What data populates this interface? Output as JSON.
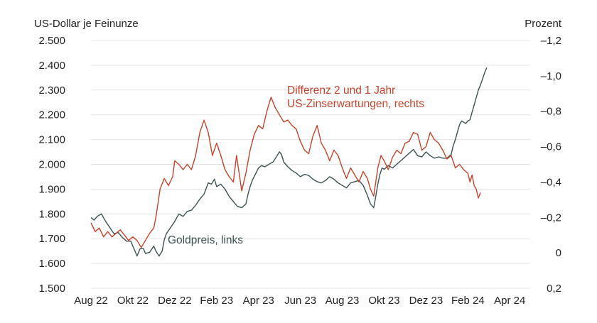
{
  "chart_data": {
    "type": "line",
    "title": "",
    "left_axis": {
      "label": "US-Dollar je Feinunze",
      "ticks": [
        "2.500",
        "2.400",
        "2.300",
        "2.200",
        "2.100",
        "2.000",
        "1.900",
        "1.800",
        "1.700",
        "1.600",
        "1.500"
      ],
      "range": [
        1500,
        2500
      ]
    },
    "right_axis": {
      "label": "Prozent",
      "ticks": [
        "–1,2",
        "–1,0",
        "–0,8",
        "–0,6",
        "–0,4",
        "–0,2",
        "0",
        "0,2"
      ],
      "range": [
        -1.2,
        0.2
      ],
      "inverted": true
    },
    "x_axis": {
      "ticks": [
        "Aug 22",
        "Okt 22",
        "Dez 22",
        "Feb 23",
        "Apr 23",
        "Jun 23",
        "Aug 23",
        "Okt 23",
        "Dez 23",
        "Feb 24",
        "Apr 24"
      ],
      "range": [
        0,
        20.5
      ]
    },
    "grid": true,
    "series": [
      {
        "name": "Goldpreis, links",
        "axis": "left",
        "color": "#3c5353",
        "points": [
          [
            0,
            1785
          ],
          [
            0.15,
            1775
          ],
          [
            0.3,
            1790
          ],
          [
            0.5,
            1800
          ],
          [
            0.7,
            1770
          ],
          [
            0.9,
            1745
          ],
          [
            1.1,
            1720
          ],
          [
            1.3,
            1725
          ],
          [
            1.5,
            1705
          ],
          [
            1.7,
            1690
          ],
          [
            1.9,
            1690
          ],
          [
            2.0,
            1670
          ],
          [
            2.1,
            1650
          ],
          [
            2.2,
            1630
          ],
          [
            2.35,
            1660
          ],
          [
            2.5,
            1660
          ],
          [
            2.6,
            1640
          ],
          [
            2.8,
            1645
          ],
          [
            3.0,
            1670
          ],
          [
            3.1,
            1650
          ],
          [
            3.25,
            1630
          ],
          [
            3.4,
            1650
          ],
          [
            3.5,
            1695
          ],
          [
            3.6,
            1720
          ],
          [
            3.8,
            1745
          ],
          [
            4.0,
            1770
          ],
          [
            4.2,
            1800
          ],
          [
            4.4,
            1790
          ],
          [
            4.6,
            1810
          ],
          [
            4.8,
            1815
          ],
          [
            5.0,
            1835
          ],
          [
            5.2,
            1860
          ],
          [
            5.4,
            1880
          ],
          [
            5.6,
            1925
          ],
          [
            5.75,
            1920
          ],
          [
            5.9,
            1940
          ],
          [
            6.0,
            1910
          ],
          [
            6.2,
            1920
          ],
          [
            6.4,
            1900
          ],
          [
            6.6,
            1870
          ],
          [
            6.8,
            1850
          ],
          [
            7.0,
            1830
          ],
          [
            7.2,
            1825
          ],
          [
            7.4,
            1840
          ],
          [
            7.5,
            1880
          ],
          [
            7.6,
            1910
          ],
          [
            7.7,
            1935
          ],
          [
            7.85,
            1960
          ],
          [
            8.0,
            1985
          ],
          [
            8.15,
            1995
          ],
          [
            8.3,
            1990
          ],
          [
            8.5,
            2000
          ],
          [
            8.7,
            2010
          ],
          [
            8.85,
            2030
          ],
          [
            9.0,
            2050
          ],
          [
            9.1,
            2040
          ],
          [
            9.2,
            2010
          ],
          [
            9.4,
            1990
          ],
          [
            9.6,
            1975
          ],
          [
            9.8,
            1965
          ],
          [
            10.0,
            1950
          ],
          [
            10.2,
            1960
          ],
          [
            10.4,
            1955
          ],
          [
            10.6,
            1940
          ],
          [
            10.8,
            1930
          ],
          [
            11.0,
            1925
          ],
          [
            11.2,
            1935
          ],
          [
            11.4,
            1950
          ],
          [
            11.6,
            1940
          ],
          [
            11.8,
            1925
          ],
          [
            12.0,
            1915
          ],
          [
            12.2,
            1905
          ],
          [
            12.4,
            1925
          ],
          [
            12.6,
            1930
          ],
          [
            12.8,
            1935
          ],
          [
            13.0,
            1915
          ],
          [
            13.2,
            1875
          ],
          [
            13.35,
            1840
          ],
          [
            13.5,
            1825
          ],
          [
            13.6,
            1870
          ],
          [
            13.7,
            1920
          ],
          [
            13.8,
            1960
          ],
          [
            13.9,
            1985
          ],
          [
            14.0,
            1980
          ],
          [
            14.2,
            1995
          ],
          [
            14.4,
            1985
          ],
          [
            14.6,
            2000
          ],
          [
            14.8,
            2015
          ],
          [
            15.0,
            2030
          ],
          [
            15.2,
            2045
          ],
          [
            15.4,
            2060
          ],
          [
            15.6,
            2035
          ],
          [
            15.8,
            2030
          ],
          [
            16.0,
            2050
          ],
          [
            16.2,
            2035
          ],
          [
            16.4,
            2025
          ],
          [
            16.6,
            2030
          ],
          [
            16.8,
            2025
          ],
          [
            17.0,
            2025
          ],
          [
            17.2,
            2040
          ],
          [
            17.3,
            2075
          ],
          [
            17.4,
            2100
          ],
          [
            17.5,
            2130
          ],
          [
            17.6,
            2160
          ],
          [
            17.7,
            2175
          ],
          [
            17.8,
            2170
          ],
          [
            17.9,
            2165
          ],
          [
            18.0,
            2175
          ],
          [
            18.1,
            2180
          ],
          [
            18.2,
            2210
          ],
          [
            18.3,
            2240
          ],
          [
            18.4,
            2270
          ],
          [
            18.5,
            2300
          ],
          [
            18.6,
            2320
          ],
          [
            18.7,
            2345
          ],
          [
            18.8,
            2370
          ],
          [
            18.9,
            2390
          ]
        ]
      },
      {
        "name": "Differenz 2 und 1 Jahr US-Zinserwartungen, rechts",
        "axis": "right",
        "color": "#c8432a",
        "points": [
          [
            0,
            -0.17
          ],
          [
            0.2,
            -0.12
          ],
          [
            0.4,
            -0.14
          ],
          [
            0.6,
            -0.09
          ],
          [
            0.8,
            -0.12
          ],
          [
            1.0,
            -0.09
          ],
          [
            1.2,
            -0.11
          ],
          [
            1.4,
            -0.13
          ],
          [
            1.6,
            -0.1
          ],
          [
            1.8,
            -0.07
          ],
          [
            2.0,
            -0.09
          ],
          [
            2.2,
            -0.07
          ],
          [
            2.4,
            -0.03
          ],
          [
            2.6,
            -0.07
          ],
          [
            2.8,
            -0.11
          ],
          [
            3.0,
            -0.14
          ],
          [
            3.1,
            -0.2
          ],
          [
            3.2,
            -0.28
          ],
          [
            3.3,
            -0.36
          ],
          [
            3.5,
            -0.42
          ],
          [
            3.7,
            -0.38
          ],
          [
            3.9,
            -0.43
          ],
          [
            4.0,
            -0.52
          ],
          [
            4.2,
            -0.5
          ],
          [
            4.4,
            -0.47
          ],
          [
            4.6,
            -0.5
          ],
          [
            4.8,
            -0.47
          ],
          [
            5.0,
            -0.55
          ],
          [
            5.2,
            -0.68
          ],
          [
            5.4,
            -0.75
          ],
          [
            5.6,
            -0.68
          ],
          [
            5.8,
            -0.55
          ],
          [
            6.0,
            -0.62
          ],
          [
            6.2,
            -0.55
          ],
          [
            6.4,
            -0.47
          ],
          [
            6.6,
            -0.43
          ],
          [
            6.8,
            -0.4
          ],
          [
            6.95,
            -0.55
          ],
          [
            7.1,
            -0.43
          ],
          [
            7.2,
            -0.35
          ],
          [
            7.4,
            -0.45
          ],
          [
            7.6,
            -0.58
          ],
          [
            7.8,
            -0.67
          ],
          [
            8.0,
            -0.72
          ],
          [
            8.2,
            -0.7
          ],
          [
            8.4,
            -0.8
          ],
          [
            8.6,
            -0.88
          ],
          [
            8.8,
            -0.82
          ],
          [
            9.0,
            -0.78
          ],
          [
            9.2,
            -0.74
          ],
          [
            9.4,
            -0.75
          ],
          [
            9.6,
            -0.72
          ],
          [
            9.8,
            -0.7
          ],
          [
            10.0,
            -0.63
          ],
          [
            10.2,
            -0.58
          ],
          [
            10.4,
            -0.56
          ],
          [
            10.6,
            -0.66
          ],
          [
            10.8,
            -0.72
          ],
          [
            11.0,
            -0.62
          ],
          [
            11.2,
            -0.58
          ],
          [
            11.4,
            -0.52
          ],
          [
            11.6,
            -0.58
          ],
          [
            11.8,
            -0.55
          ],
          [
            12.0,
            -0.48
          ],
          [
            12.2,
            -0.42
          ],
          [
            12.4,
            -0.48
          ],
          [
            12.6,
            -0.44
          ],
          [
            12.8,
            -0.4
          ],
          [
            13.0,
            -0.46
          ],
          [
            13.2,
            -0.42
          ],
          [
            13.35,
            -0.36
          ],
          [
            13.5,
            -0.32
          ],
          [
            13.7,
            -0.48
          ],
          [
            13.85,
            -0.55
          ],
          [
            14.0,
            -0.52
          ],
          [
            14.2,
            -0.47
          ],
          [
            14.4,
            -0.54
          ],
          [
            14.6,
            -0.58
          ],
          [
            14.8,
            -0.56
          ],
          [
            15.0,
            -0.62
          ],
          [
            15.2,
            -0.63
          ],
          [
            15.4,
            -0.68
          ],
          [
            15.6,
            -0.67
          ],
          [
            15.8,
            -0.58
          ],
          [
            16.0,
            -0.6
          ],
          [
            16.2,
            -0.68
          ],
          [
            16.4,
            -0.64
          ],
          [
            16.6,
            -0.62
          ],
          [
            16.8,
            -0.58
          ],
          [
            17.0,
            -0.53
          ],
          [
            17.2,
            -0.55
          ],
          [
            17.4,
            -0.48
          ],
          [
            17.6,
            -0.5
          ],
          [
            17.8,
            -0.47
          ],
          [
            18.0,
            -0.45
          ],
          [
            18.1,
            -0.4
          ],
          [
            18.2,
            -0.44
          ],
          [
            18.3,
            -0.38
          ],
          [
            18.4,
            -0.36
          ],
          [
            18.5,
            -0.31
          ],
          [
            18.6,
            -0.34
          ]
        ]
      }
    ],
    "annotations": [
      {
        "target": "Goldpreis, links",
        "lines": [
          "Goldpreis, links"
        ],
        "color": "#3c5353"
      },
      {
        "target": "Differenz 2 und 1 Jahr US-Zinserwartungen, rechts",
        "lines": [
          "Differenz 2 und 1 Jahr",
          "US-Zinserwartungen, rechts"
        ],
        "color": "#c8432a"
      }
    ]
  }
}
